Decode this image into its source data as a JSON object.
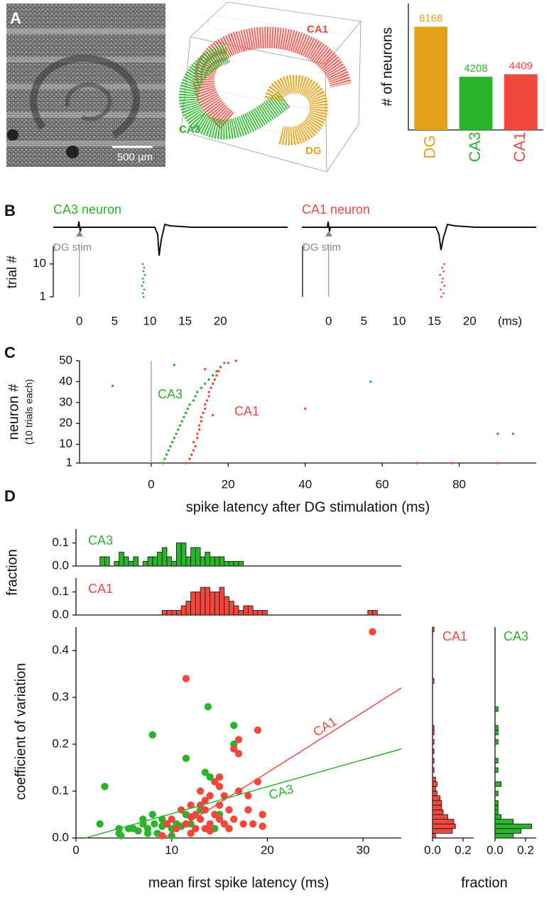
{
  "panel_labels": [
    "A",
    "B",
    "C",
    "D"
  ],
  "image": {
    "scale_bar": "500 µm"
  },
  "scatter3d": {
    "labels": [
      "CA1",
      "CA3",
      "DG"
    ]
  },
  "chart_data": [
    {
      "type": "bar",
      "ylabel": "# of neurons",
      "categories": [
        "DG",
        "CA3",
        "CA1"
      ],
      "values": [
        8168,
        4208,
        4409
      ],
      "colors": [
        "#e8a21a",
        "#2ab42a",
        "#f2473c"
      ],
      "ylim": [
        0,
        10000
      ]
    },
    {
      "type": "raster",
      "title": "CA3 neuron",
      "annotation": "DG stim",
      "ylabel": "trial #",
      "xlim": [
        -3.7,
        23.5
      ],
      "xticks": [
        0,
        5,
        10,
        15,
        20
      ],
      "ylim": [
        1,
        15
      ],
      "yticks": [
        1,
        10
      ],
      "vline": 0,
      "series": [
        {
          "color": "#2ab42a",
          "x": [
            9.1,
            9.0,
            9.2,
            8.9,
            9.1,
            9.0,
            9.3,
            9.1,
            9.2,
            9.0
          ],
          "values": [
            1,
            2,
            3,
            4,
            5,
            6,
            7,
            8,
            9,
            10
          ]
        }
      ]
    },
    {
      "type": "raster",
      "title": "CA1 neuron",
      "annotation": "DG stim",
      "xlabel": "(ms)",
      "xlim": [
        -3.7,
        23.5
      ],
      "xticks": [
        0,
        5,
        10,
        15,
        20
      ],
      "ylim": [
        1,
        15
      ],
      "vline": 0,
      "series": [
        {
          "color": "#f2473c",
          "x": [
            16.0,
            16.3,
            15.9,
            16.4,
            16.1,
            16.2,
            15.8,
            16.3,
            16.1,
            16.4
          ],
          "values": [
            1,
            2,
            3,
            4,
            5,
            6,
            7,
            8,
            9,
            10
          ]
        }
      ]
    },
    {
      "type": "scatter",
      "ylabel": "neuron #",
      "ylabel_note": "(10 trials each)",
      "xlabel": "spike latency after DG stimulation (ms)",
      "xlim": [
        -18.6,
        100
      ],
      "xticks": [
        0,
        20,
        40,
        60,
        80
      ],
      "ylim": [
        1,
        50
      ],
      "yticks": [
        1,
        10,
        20,
        30,
        40,
        50
      ],
      "vline": 0,
      "series": [
        {
          "name": "CA3",
          "color": "#2ab42a",
          "x": [
            3,
            3.5,
            4,
            4.5,
            5,
            5.5,
            6,
            6.5,
            7,
            7.5,
            8,
            8.5,
            9,
            9.5,
            10,
            11,
            11.5,
            12,
            13,
            14,
            15,
            16,
            17,
            18,
            19,
            6,
            57,
            90,
            94
          ],
          "values": [
            1,
            3,
            5,
            7,
            9,
            11,
            13,
            15,
            17,
            19,
            21,
            23,
            25,
            27,
            29,
            31,
            33,
            35,
            37,
            39,
            41,
            43,
            45,
            47,
            49,
            48,
            40,
            15,
            15
          ]
        },
        {
          "name": "CA1",
          "color": "#f2473c",
          "x": [
            9,
            10,
            10.5,
            11,
            11.5,
            11,
            12,
            12,
            12.5,
            12.5,
            13,
            13,
            13.5,
            14,
            14,
            14.5,
            15,
            15,
            15.5,
            16,
            16.5,
            17,
            17.5,
            18,
            20,
            -10,
            40,
            69,
            78,
            90,
            14,
            16,
            22
          ],
          "values": [
            1,
            3,
            5,
            7,
            9,
            11,
            13,
            15,
            17,
            19,
            21,
            23,
            25,
            27,
            29,
            31,
            33,
            35,
            37,
            39,
            41,
            43,
            45,
            47,
            49,
            38,
            27,
            1,
            1,
            1,
            46,
            24,
            50
          ]
        }
      ]
    },
    {
      "type": "histogram",
      "label": "CA3",
      "color": "#2ab42a",
      "xlim": [
        0,
        34
      ],
      "ylim": [
        0,
        0.16
      ],
      "yticks": [
        {
          "value": 0,
          "label": "0.0"
        },
        0.1
      ],
      "bins": [
        2.5,
        3,
        3.5,
        4,
        4.5,
        5,
        5.5,
        6,
        6.5,
        7,
        7.5,
        8,
        8.5,
        9,
        9.5,
        10,
        10.5,
        11,
        11.5,
        12,
        12.5,
        13,
        13.5,
        14,
        14.5,
        15,
        15.5,
        16,
        16.5,
        17,
        17.5
      ],
      "values": [
        0.04,
        0.04,
        0,
        0.02,
        0.06,
        0.04,
        0.02,
        0.04,
        0,
        0.02,
        0.04,
        0.04,
        0.06,
        0.08,
        0.04,
        0.02,
        0.1,
        0.1,
        0.04,
        0.08,
        0.08,
        0.04,
        0.06,
        0.04,
        0.04,
        0.04,
        0.02,
        0.02,
        0.02,
        0.02
      ]
    },
    {
      "type": "histogram",
      "label": "CA1",
      "ylabel": "fraction",
      "color": "#f2473c",
      "xlim": [
        0,
        34
      ],
      "ylim": [
        0,
        0.16
      ],
      "yticks": [
        {
          "value": 0,
          "label": "0.0"
        },
        0.1
      ],
      "bins": [
        9,
        9.5,
        10,
        10.5,
        11,
        11.5,
        12,
        12.5,
        13,
        13.5,
        14,
        14.5,
        15,
        15.5,
        16,
        16.5,
        17,
        17.5,
        18,
        18.5,
        19,
        19.5,
        20,
        20.5,
        21,
        21.5,
        22,
        22.5,
        23,
        23.5,
        24,
        24.5,
        25,
        25.5,
        26,
        26.5,
        27,
        27.5,
        28,
        28.5,
        29,
        29.5,
        30,
        30.5,
        31,
        31.5
      ],
      "values": [
        0.02,
        0.02,
        0.02,
        0.02,
        0.04,
        0.06,
        0.1,
        0.1,
        0.12,
        0.12,
        0.1,
        0.1,
        0.12,
        0.08,
        0.06,
        0.04,
        0.02,
        0.04,
        0.04,
        0.02,
        0.02,
        0.02,
        0,
        0,
        0,
        0,
        0,
        0,
        0,
        0,
        0,
        0,
        0,
        0,
        0,
        0,
        0,
        0,
        0,
        0,
        0,
        0,
        0,
        0.02,
        0.02
      ]
    },
    {
      "type": "scatter",
      "xlabel": "mean first spike latency (ms)",
      "ylabel": "coefficient of variation",
      "xlim": [
        0,
        34
      ],
      "xticks": [
        0,
        10,
        20,
        30
      ],
      "ylim": [
        0,
        0.45
      ],
      "yticks": [
        {
          "value": 0,
          "label": "0.0"
        },
        0.1,
        0.2,
        0.3,
        0.4
      ],
      "series": [
        {
          "color": "#2ab42a",
          "x": [
            2.5,
            3,
            4.5,
            4.5,
            4.7,
            5.5,
            6,
            6.5,
            7,
            7.5,
            7.5,
            8,
            8,
            8.2,
            8.5,
            9,
            9.5,
            10,
            10.5,
            11,
            11.5,
            11.5,
            12,
            12.5,
            13,
            13.5,
            13.8,
            14,
            14,
            14.5,
            15,
            15.5,
            16,
            16.5,
            16.5,
            10,
            9,
            7
          ],
          "values": [
            0.03,
            0.11,
            0.02,
            0.01,
            0.005,
            0.02,
            0.02,
            0.015,
            0.03,
            0.02,
            0.01,
            0.22,
            0.05,
            0.03,
            0.01,
            0.04,
            0.03,
            0.02,
            0.03,
            0.025,
            0.17,
            0.05,
            0.03,
            0.02,
            0.06,
            0.14,
            0.28,
            0.13,
            0.03,
            0.02,
            0.05,
            0.03,
            0.02,
            0.24,
            0.2,
            0.005,
            0.025,
            0.04
          ]
        },
        {
          "color": "#f2473c",
          "x": [
            9,
            9.5,
            10,
            10.5,
            11,
            11.5,
            11.5,
            12,
            12,
            12.5,
            12.5,
            13,
            13,
            13,
            13.5,
            13.5,
            14,
            14,
            14.5,
            14.5,
            15,
            15,
            15,
            15.5,
            15.5,
            16,
            16,
            16.5,
            16.5,
            17,
            17,
            17,
            17.5,
            18,
            18,
            18.5,
            19,
            19,
            19.5,
            19.5,
            31,
            12,
            14,
            15,
            13.5
          ],
          "values": [
            0.005,
            0.03,
            0.04,
            0.02,
            0.06,
            0.34,
            0.03,
            0.01,
            0.07,
            0.05,
            0.02,
            0.1,
            0.07,
            0.04,
            0.02,
            0.06,
            0.09,
            0.03,
            0.12,
            0.05,
            0.11,
            0.13,
            0.07,
            0.03,
            0.09,
            0.06,
            0.02,
            0.04,
            0.19,
            0.21,
            0.18,
            0.1,
            0.03,
            0.09,
            0.06,
            0.03,
            0.23,
            0.12,
            0.05,
            0.025,
            0.44,
            0.045,
            0.015,
            0.04,
            0.08
          ]
        }
      ],
      "lines": [
        {
          "name": "CA1",
          "color": "#f2473c",
          "x": [
            9.2,
            34
          ],
          "values": [
            0,
            0.32
          ]
        },
        {
          "name": "CA3",
          "color": "#2ab42a",
          "x": [
            1,
            34
          ],
          "values": [
            0,
            0.19
          ]
        }
      ]
    },
    {
      "type": "histogram",
      "orientation": "horizontal",
      "label": "CA1",
      "color": "#f2473c",
      "xlim": [
        0,
        0.27
      ],
      "xticks": [
        {
          "value": 0,
          "label": "0.0"
        },
        0.2
      ],
      "ylim": [
        0,
        0.45
      ],
      "bins": [
        0,
        0.01,
        0.02,
        0.03,
        0.04,
        0.05,
        0.06,
        0.07,
        0.08,
        0.09,
        0.1,
        0.11,
        0.12,
        0.13,
        0.14,
        0.15,
        0.16,
        0.17,
        0.18,
        0.19,
        0.2,
        0.21,
        0.22,
        0.23,
        0.24,
        0.25,
        0.26,
        0.27,
        0.28,
        0.29,
        0.3,
        0.31,
        0.32,
        0.33,
        0.34,
        0.35,
        0.36,
        0.37,
        0.38,
        0.39,
        0.4,
        0.41,
        0.42,
        0.43,
        0.44,
        0.45
      ],
      "values": [
        0.02,
        0.13,
        0.15,
        0.14,
        0.1,
        0.07,
        0.06,
        0.06,
        0.05,
        0.03,
        0.02,
        0.03,
        0.02,
        0,
        0.01,
        0,
        0.01,
        0,
        0.01,
        0,
        0.01,
        0,
        0.01,
        0.01,
        0,
        0,
        0,
        0,
        0,
        0,
        0,
        0,
        0,
        0.01,
        0,
        0,
        0,
        0,
        0,
        0,
        0,
        0,
        0,
        0,
        0.01
      ]
    },
    {
      "type": "histogram",
      "orientation": "horizontal",
      "label": "CA3",
      "xlabel": "fraction",
      "color": "#2ab42a",
      "xlim": [
        0,
        0.27
      ],
      "xticks": [
        {
          "value": 0,
          "label": "0.0"
        },
        0.2
      ],
      "ylim": [
        0,
        0.45
      ],
      "bins": [
        0,
        0.01,
        0.02,
        0.03,
        0.04,
        0.05,
        0.06,
        0.07,
        0.08,
        0.09,
        0.1,
        0.11,
        0.12,
        0.13,
        0.14,
        0.15,
        0.16,
        0.17,
        0.18,
        0.19,
        0.2,
        0.21,
        0.22,
        0.23,
        0.24,
        0.25,
        0.26,
        0.27,
        0.28,
        0.29,
        0.3,
        0.31,
        0.32,
        0.33,
        0.34,
        0.35,
        0.36,
        0.37,
        0.38,
        0.39,
        0.4,
        0.41,
        0.42,
        0.43,
        0.44,
        0.45
      ],
      "values": [
        0.12,
        0.17,
        0.24,
        0.12,
        0.04,
        0.02,
        0.02,
        0.02,
        0,
        0.02,
        0,
        0.04,
        0,
        0,
        0.02,
        0,
        0.02,
        0,
        0,
        0,
        0.02,
        0,
        0.02,
        0.02,
        0,
        0,
        0,
        0.02,
        0,
        0,
        0,
        0,
        0,
        0,
        0,
        0,
        0,
        0,
        0,
        0,
        0,
        0,
        0,
        0,
        0
      ]
    }
  ]
}
